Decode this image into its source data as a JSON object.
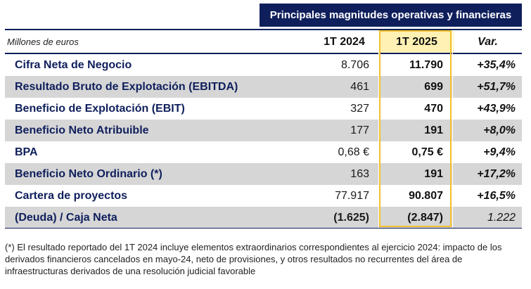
{
  "banner_title": "Principales magnitudes operativas y financieras",
  "table": {
    "units_label": "Millones de euros",
    "headers": {
      "col_2024": "1T 2024",
      "col_2025": "1T 2025",
      "col_var": "Var."
    },
    "rows": [
      {
        "label": "Cifra Neta de Negocio",
        "v2024": "8.706",
        "v2025": "11.790",
        "var": "+35,4%"
      },
      {
        "label": "Resultado Bruto de Explotación (EBITDA)",
        "v2024": "461",
        "v2025": "699",
        "var": "+51,7%"
      },
      {
        "label": "Beneficio de Explotación (EBIT)",
        "v2024": "327",
        "v2025": "470",
        "var": "+43,9%"
      },
      {
        "label": "Beneficio Neto Atribuible",
        "v2024": "177",
        "v2025": "191",
        "var": "+8,0%"
      },
      {
        "label": "BPA",
        "v2024": "0,68 €",
        "v2025": "0,75 €",
        "var": "+9,4%"
      },
      {
        "label": "Beneficio Neto Ordinario (*)",
        "v2024": "163",
        "v2025": "191",
        "var": "+17,2%"
      },
      {
        "label": "Cartera de proyectos",
        "v2024": "77.917",
        "v2025": "90.807",
        "var": "+16,5%"
      },
      {
        "label": "(Deuda) / Caja Neta",
        "v2024": "(1.625)",
        "v2025": "(2.847)",
        "var": "1.222"
      }
    ]
  },
  "footnote": "(*) El resultado reportado del 1T 2024 incluye elementos extraordinarios correspondientes al ejercicio 2024: impacto de los derivados financieros cancelados en mayo-24, neto de provisiones, y otros resultados no recurrentes del área de infraestructuras derivados de una resolución judicial favorable",
  "colors": {
    "navy": "#0f1f5c",
    "row_shade": "#d6d6d6",
    "highlight_border": "#f2c12e",
    "highlight_fill": "#fff1b3"
  }
}
